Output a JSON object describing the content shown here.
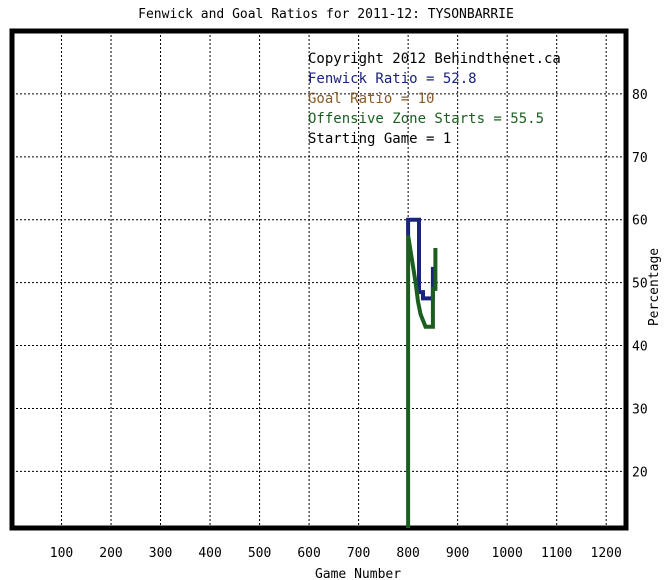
{
  "chart_data": {
    "type": "line",
    "title": "Fenwick and Goal Ratios for 2011-12: TYSONBARRIE",
    "xlabel": "Game Number",
    "ylabel": "Percentage",
    "xlim": [
      0,
      1240
    ],
    "ylim": [
      11,
      90
    ],
    "x_ticks": [
      100,
      200,
      300,
      400,
      500,
      600,
      700,
      800,
      900,
      1000,
      1100,
      1200
    ],
    "x_tick_labels": [
      "100",
      "200",
      "300",
      "400",
      "500",
      "600",
      "700",
      "800",
      "900",
      "1000",
      "1100",
      "1200"
    ],
    "y_ticks": [
      20,
      30,
      40,
      50,
      60,
      70,
      80
    ],
    "y_tick_labels": [
      "20",
      "30",
      "40",
      "50",
      "60",
      "70",
      "80"
    ],
    "grid": true,
    "annotations": [
      {
        "text": "Copyright 2012 Behindthenet.ca",
        "color": "#000000"
      },
      {
        "text": "Fenwick Ratio = 52.8",
        "color": "#1a237e"
      },
      {
        "text": "Goal Ratio = 10",
        "color": "#8b5a2b"
      },
      {
        "text": "Offensive Zone Starts = 55.5",
        "color": "#1b5e20"
      },
      {
        "text": "Starting Game = 1",
        "color": "#000000"
      }
    ],
    "series": [
      {
        "color": "#1a237e",
        "x": [
          800,
          800,
          822,
          822,
          830,
          830,
          850,
          850
        ],
        "y": [
          57.5,
          60,
          60,
          48.5,
          48.5,
          47.5,
          47.5,
          52.5
        ]
      },
      {
        "color": "#1b5e20",
        "x": [
          800,
          800,
          815,
          820,
          825,
          830,
          835,
          850,
          850,
          855,
          855
        ],
        "y": [
          11,
          57.5,
          50,
          47,
          45,
          44,
          43,
          43,
          49,
          49,
          55.5
        ]
      }
    ]
  }
}
